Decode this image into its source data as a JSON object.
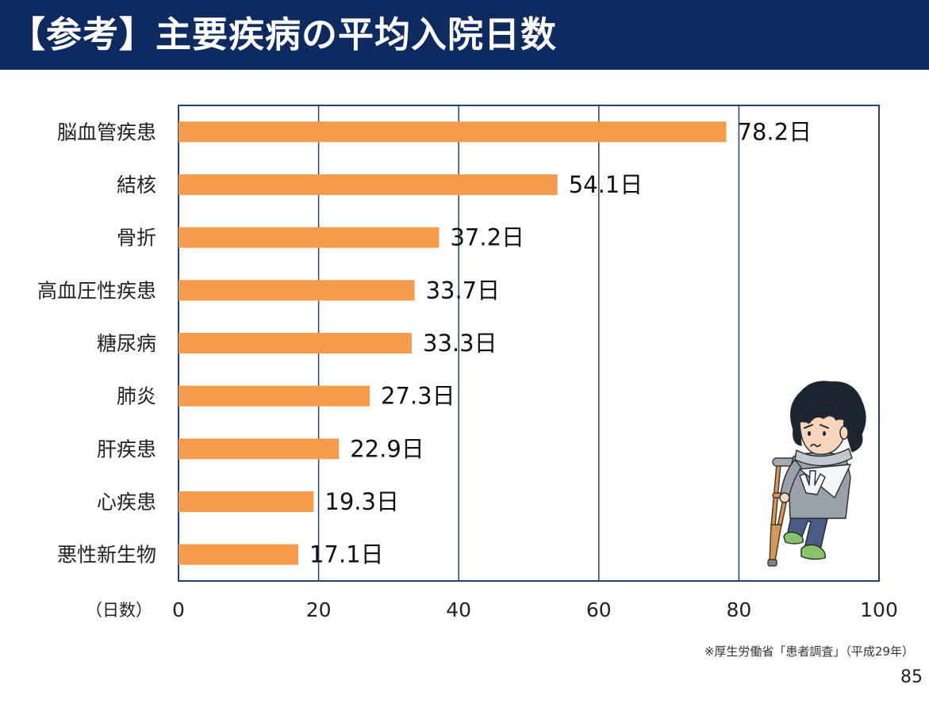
{
  "chart_data": {
    "type": "bar",
    "orientation": "horizontal",
    "title": "【参考】主要疾病の平均入院日数",
    "categories": [
      "脳血管疾患",
      "結核",
      "骨折",
      "高血圧性疾患",
      "糖尿病",
      "肺炎",
      "肝疾患",
      "心疾患",
      "悪性新生物"
    ],
    "values": [
      78.2,
      54.1,
      37.2,
      33.7,
      33.3,
      27.3,
      22.9,
      19.3,
      17.1
    ],
    "data_labels": [
      "78.2日",
      "54.1日",
      "37.2日",
      "33.7日",
      "33.3日",
      "27.3日",
      "22.9日",
      "19.3日",
      "17.1日"
    ],
    "xlabel": "（日数）",
    "xlim": [
      0,
      100
    ],
    "xticks": [
      0,
      20,
      40,
      60,
      80,
      100
    ],
    "grid": true,
    "legend": "none"
  },
  "footer": {
    "source_note": "※厚生労働省「患者調査」（平成29年）",
    "page_number": "85"
  },
  "colors": {
    "header_background": "#0f2a5f",
    "header_text": "#ffffff",
    "bar": "#f59b4d",
    "axis": "#24427a",
    "text": "#222222"
  },
  "icons": {
    "illustration": "injured-man-with-crutch"
  }
}
